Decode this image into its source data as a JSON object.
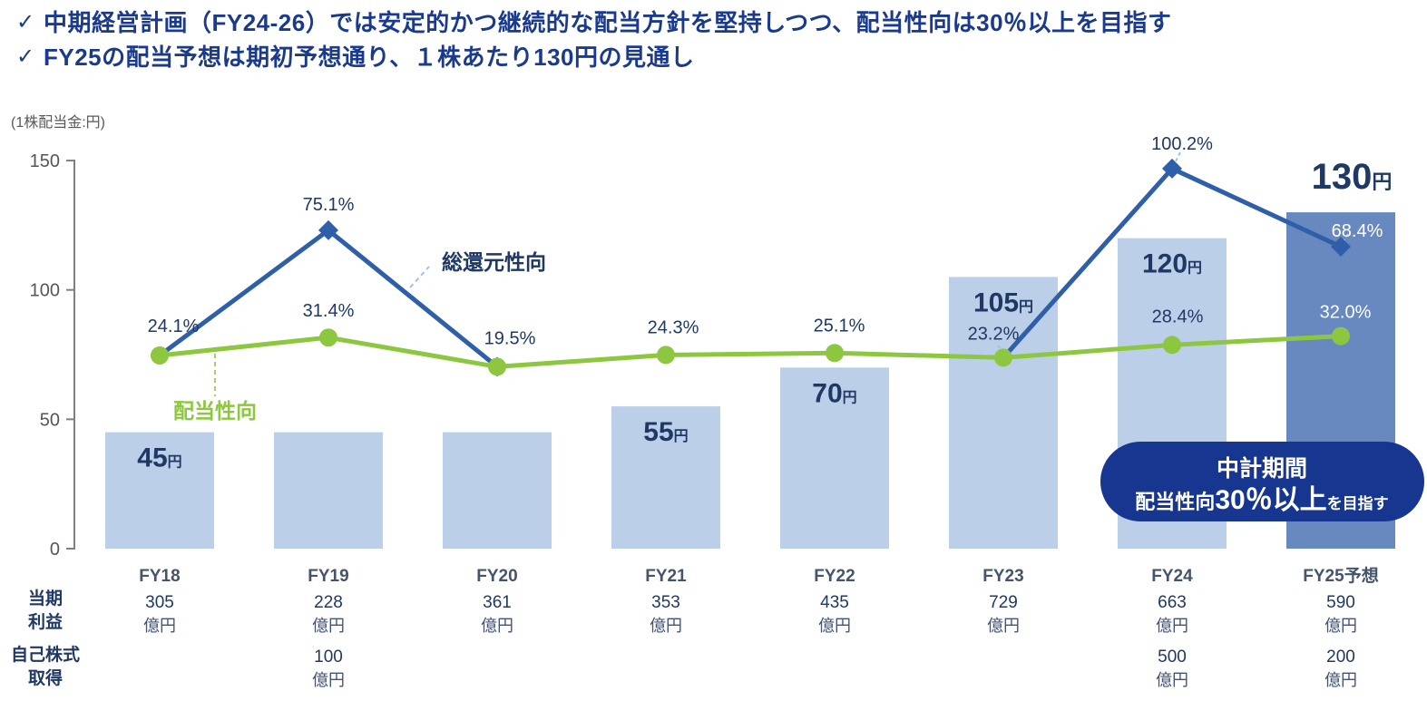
{
  "header": {
    "check": "✓",
    "bullets": [
      "中期経営計画（FY24-26）では安定的かつ継続的な配当方針を堅持しつつ、配当性向は30％以上を目指す",
      "FY25の配当予想は期初予想通り、１株あたり130円の見通し"
    ]
  },
  "chart_data": {
    "type": "bar+line",
    "unit_label": "(1株配当金:円)",
    "y_axis": {
      "ticks": [
        0,
        50,
        100,
        150
      ],
      "min": 0,
      "max": 150,
      "grid": false
    },
    "categories": [
      "FY18",
      "FY19",
      "FY20",
      "FY21",
      "FY22",
      "FY23",
      "FY24",
      "FY25予想"
    ],
    "bars": {
      "name": "1株配当金(円)",
      "values": [
        45,
        45,
        45,
        55,
        70,
        105,
        120,
        130
      ],
      "labels": [
        {
          "num": "45",
          "unit": "円"
        },
        null,
        null,
        {
          "num": "55",
          "unit": "円"
        },
        {
          "num": "70",
          "unit": "円"
        },
        {
          "num": "105",
          "unit": "円"
        },
        {
          "num": "120",
          "unit": "円"
        },
        {
          "num": "130",
          "unit": "円"
        }
      ]
    },
    "series": [
      {
        "name": "総還元性向",
        "values": [
          24.1,
          75.1,
          19.5,
          24.3,
          25.1,
          23.2,
          100.2,
          68.4
        ]
      },
      {
        "name": "配当性向",
        "values": [
          24.1,
          31.4,
          19.5,
          24.3,
          25.1,
          23.2,
          28.4,
          32.0
        ]
      }
    ],
    "point_label_texts": [
      "24.1%",
      "75.1%",
      "31.4%",
      "19.5%",
      "24.3%",
      "25.1%",
      "23.2%",
      "100.2%",
      "28.4%",
      "68.4%",
      "32.0%"
    ]
  },
  "badge": {
    "line1": "中計期間",
    "line2_prefix": "配当性向",
    "line2_big": "30％以上",
    "line2_suffix": "を目指す"
  },
  "table": {
    "rows": [
      {
        "label_lines": [
          "当期",
          "利益"
        ],
        "values": [
          "305",
          "228",
          "361",
          "353",
          "435",
          "729",
          "663",
          "590"
        ],
        "unit": "億円"
      },
      {
        "label_lines": [
          "自己株式",
          "取得"
        ],
        "values": [
          null,
          "100",
          null,
          null,
          null,
          null,
          "500",
          "200"
        ],
        "unit": "億円"
      }
    ]
  },
  "colors": {
    "header_blue": "#1a3a8e",
    "navy_text": "#1f3864",
    "bar_light": "#bccfe9",
    "bar_dark": "#6789c0",
    "line_blue": "#2f5fa8",
    "line_green": "#8dc73f",
    "axis_gray": "#7f7f7f",
    "tick_text": "#55565a",
    "fy_label": "#44546a",
    "table_unit": "#3f5277",
    "badge_bg": "#16368f",
    "leader_blue": "#9dc3e6",
    "white": "#ffffff"
  }
}
